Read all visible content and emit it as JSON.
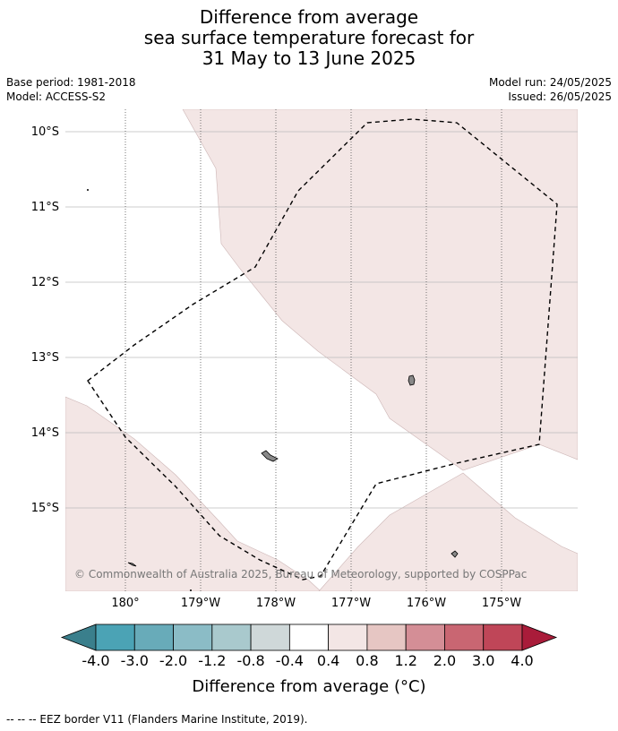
{
  "title": {
    "line1": "Difference from average",
    "line2": "sea surface temperature forecast for",
    "line3": "31 May to 13 June 2025"
  },
  "meta": {
    "base_period": "Base period: 1981-2018",
    "model": "Model: ACCESS-S2",
    "model_run": "Model run: 24/05/2025",
    "issued": "Issued: 26/05/2025"
  },
  "map": {
    "lon_labels": [
      "180°",
      "179°W",
      "178°W",
      "177°W",
      "176°W",
      "175°W"
    ],
    "lat_labels": [
      "10°S",
      "11°S",
      "12°S",
      "13°S",
      "14°S",
      "15°S"
    ],
    "copyright": "© Commonwealth of Australia 2025, Bureau of Meteorology, supported by COSPPac",
    "colors": {
      "anomaly_0_4_to_0_8": "#f3e6e5",
      "land": "#888888",
      "gridline": "#bbbbbb",
      "eez_border": "#000000"
    }
  },
  "colorbar": {
    "tick_labels": [
      "-4.0",
      "-3.0",
      "-2.0",
      "-1.2",
      "-0.8",
      "-0.4",
      "0.4",
      "0.8",
      "1.2",
      "2.0",
      "3.0",
      "4.0"
    ],
    "colors": [
      "#3a7f8c",
      "#4ba3b5",
      "#68abb9",
      "#8bbcc6",
      "#a9c9cd",
      "#cfd8d9",
      "#ffffff",
      "#f3e6e5",
      "#e6c6c3",
      "#d48e96",
      "#c96672",
      "#bf4658",
      "#a91c3a"
    ],
    "label": "Difference from average (°C)"
  },
  "footer": "--  --  -- EEZ border V11 (Flanders Marine Institute, 2019)."
}
